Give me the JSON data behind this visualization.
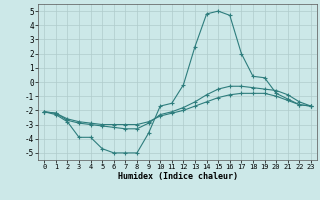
{
  "title": "",
  "xlabel": "Humidex (Indice chaleur)",
  "xlim": [
    -0.5,
    23.5
  ],
  "ylim": [
    -5.5,
    5.5
  ],
  "yticks": [
    -5,
    -4,
    -3,
    -2,
    -1,
    0,
    1,
    2,
    3,
    4,
    5
  ],
  "xticks": [
    0,
    1,
    2,
    3,
    4,
    5,
    6,
    7,
    8,
    9,
    10,
    11,
    12,
    13,
    14,
    15,
    16,
    17,
    18,
    19,
    20,
    21,
    22,
    23
  ],
  "background_color": "#cce8e8",
  "grid_color": "#b0cccc",
  "line_color": "#2e7d7d",
  "line1_x": [
    0,
    1,
    2,
    3,
    4,
    5,
    6,
    7,
    8,
    9,
    10,
    11,
    12,
    13,
    14,
    15,
    16,
    17,
    18,
    19,
    20,
    21,
    22,
    23
  ],
  "line1_y": [
    -2.1,
    -2.3,
    -2.8,
    -3.9,
    -3.9,
    -4.7,
    -5.0,
    -5.0,
    -5.0,
    -3.6,
    -1.7,
    -1.5,
    -0.2,
    2.5,
    4.8,
    5.0,
    4.7,
    2.0,
    0.4,
    0.3,
    -0.8,
    -1.2,
    -1.6,
    -1.7
  ],
  "line2_x": [
    0,
    1,
    2,
    3,
    4,
    5,
    6,
    7,
    8,
    9,
    10,
    11,
    12,
    13,
    14,
    15,
    16,
    17,
    18,
    19,
    20,
    21,
    22,
    23
  ],
  "line2_y": [
    -2.1,
    -2.2,
    -2.7,
    -2.9,
    -3.0,
    -3.1,
    -3.2,
    -3.3,
    -3.3,
    -2.9,
    -2.3,
    -2.1,
    -1.8,
    -1.4,
    -0.9,
    -0.5,
    -0.3,
    -0.3,
    -0.4,
    -0.5,
    -0.6,
    -0.9,
    -1.4,
    -1.7
  ],
  "line3_x": [
    0,
    1,
    2,
    3,
    4,
    5,
    6,
    7,
    8,
    9,
    10,
    11,
    12,
    13,
    14,
    15,
    16,
    17,
    18,
    19,
    20,
    21,
    22,
    23
  ],
  "line3_y": [
    -2.1,
    -2.2,
    -2.6,
    -2.8,
    -2.9,
    -3.0,
    -3.0,
    -3.0,
    -3.0,
    -2.8,
    -2.4,
    -2.2,
    -2.0,
    -1.7,
    -1.4,
    -1.1,
    -0.9,
    -0.8,
    -0.8,
    -0.8,
    -1.0,
    -1.3,
    -1.6,
    -1.7
  ]
}
